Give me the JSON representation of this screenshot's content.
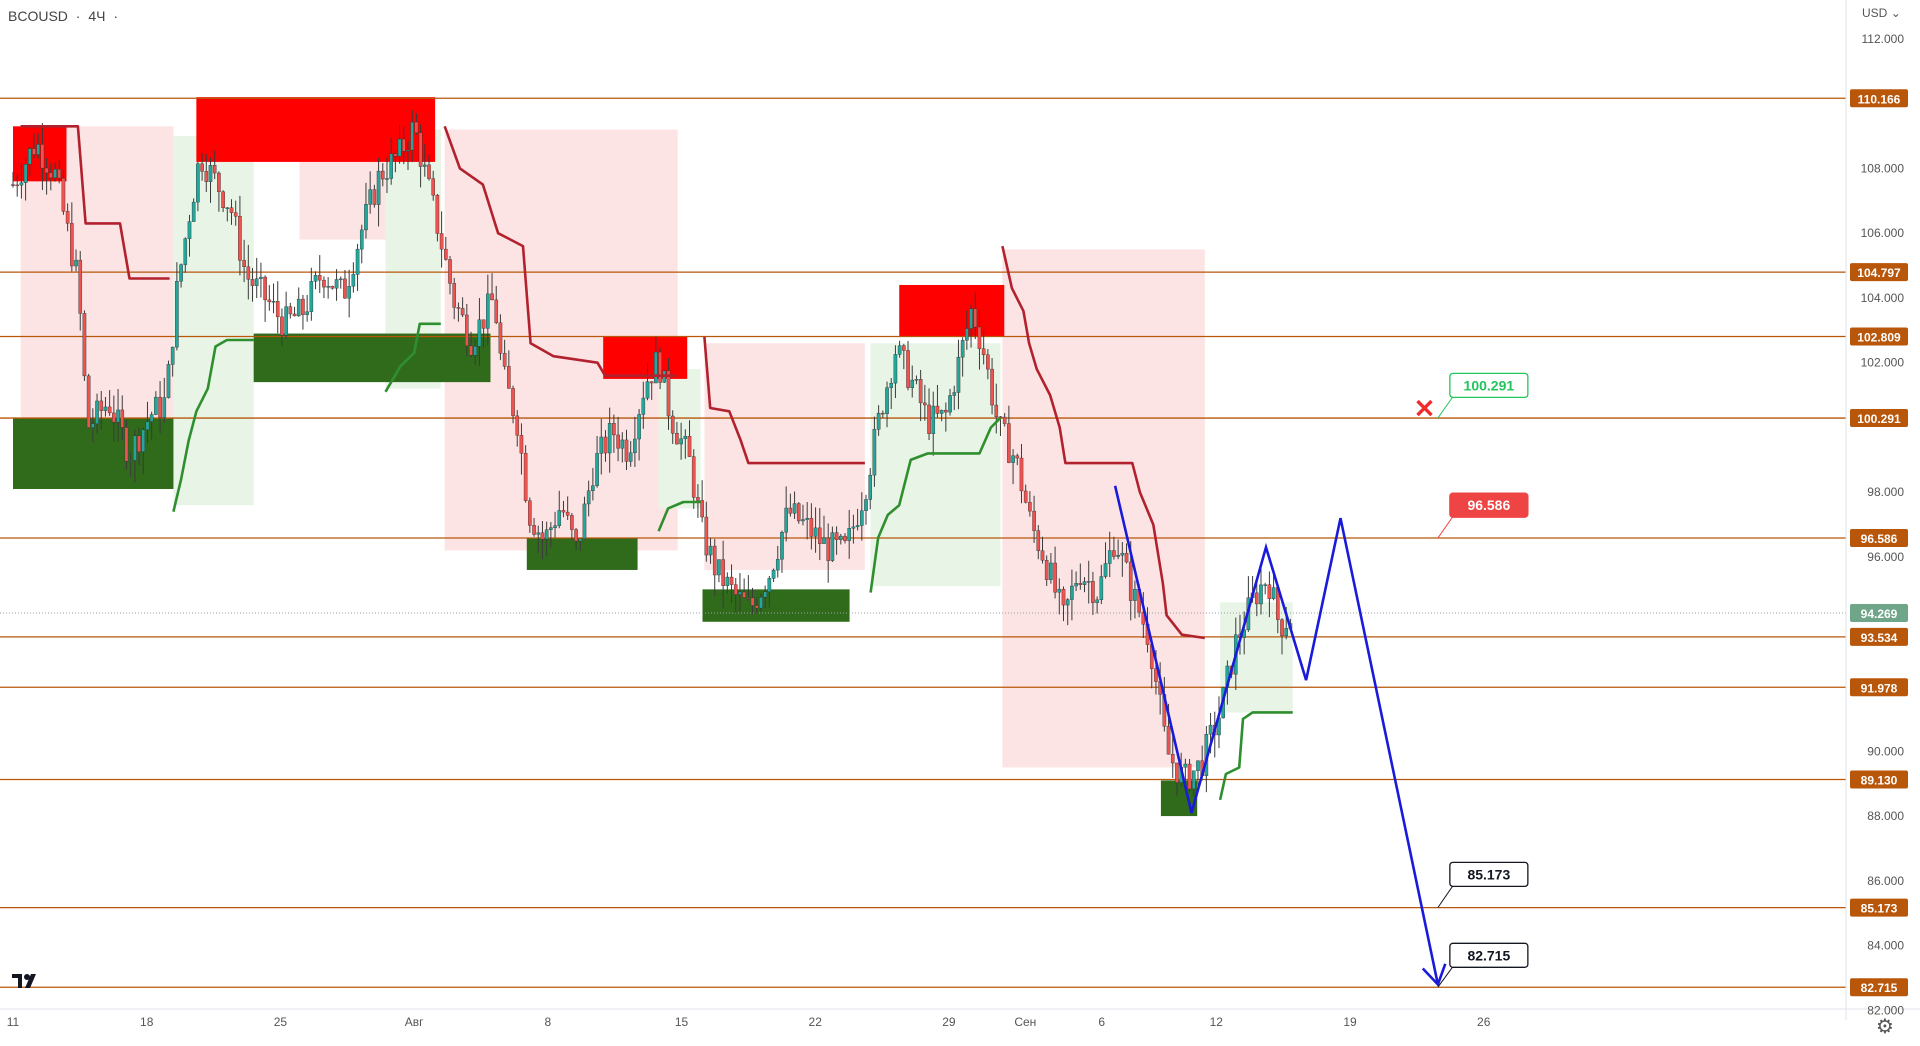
{
  "header": {
    "symbol": "BCOUSD",
    "timeframe": "4Ч"
  },
  "price_axis": {
    "currency": "USD"
  },
  "colors": {
    "level_line": "#b8560a",
    "level_label_bg": "#b8560a",
    "resistance_zone": "#ff0000",
    "support_zone": "#2f6b1b",
    "trail_down": "#b2222e",
    "trail_up": "#2f8f2f",
    "shade_down": "#fde4e4",
    "shade_up": "#e8f5e6",
    "projection": "#1a1adb",
    "current_price_bg": "#6fa589"
  },
  "icons": {
    "logo": "tradingview-logo-icon",
    "settings": "gear-icon",
    "stop": "x-mark-icon"
  },
  "chart_data": {
    "type": "candlestick",
    "symbol": "BCOUSD",
    "timeframe": "4Ч",
    "ylim": [
      80.9,
      113.2
    ],
    "y_ticks": [
      82,
      84,
      86,
      88,
      90,
      96,
      98,
      102,
      104,
      106,
      108,
      112
    ],
    "y_tick_labels": [
      "82.000",
      "84.000",
      "86.000",
      "88.000",
      "90.000",
      "96.000",
      "98.000",
      "102.000",
      "104.000",
      "106.000",
      "108.000",
      "112.000"
    ],
    "x_ticks": [
      {
        "label": "11",
        "d": 0
      },
      {
        "label": "18",
        "d": 7
      },
      {
        "label": "25",
        "d": 14
      },
      {
        "label": "Авг",
        "d": 21
      },
      {
        "label": "8",
        "d": 28
      },
      {
        "label": "15",
        "d": 35
      },
      {
        "label": "22",
        "d": 42
      },
      {
        "label": "29",
        "d": 49
      },
      {
        "label": "Сен",
        "d": 53
      },
      {
        "label": "6",
        "d": 57
      },
      {
        "label": "12",
        "d": 63
      },
      {
        "label": "19",
        "d": 70
      },
      {
        "label": "26",
        "d": 77
      }
    ],
    "levels": [
      {
        "value": 110.166,
        "label": "110.166"
      },
      {
        "value": 104.797,
        "label": "104.797"
      },
      {
        "value": 102.809,
        "label": "102.809"
      },
      {
        "value": 100.291,
        "label": "100.291"
      },
      {
        "value": 96.586,
        "label": "96.586"
      },
      {
        "value": 93.534,
        "label": "93.534"
      },
      {
        "value": 91.978,
        "label": "91.978"
      },
      {
        "value": 89.13,
        "label": "89.130"
      },
      {
        "value": 85.173,
        "label": "85.173"
      },
      {
        "value": 82.715,
        "label": "82.715"
      }
    ],
    "current_price": {
      "value": 94.269,
      "label": "94.269"
    },
    "resistance_zones": [
      {
        "d0": 0,
        "d1": 2.8,
        "y0": 107.6,
        "y1": 109.3
      },
      {
        "d0": 9.6,
        "d1": 22.1,
        "y0": 108.2,
        "y1": 110.2
      },
      {
        "d0": 30.9,
        "d1": 35.3,
        "y0": 101.5,
        "y1": 102.8
      },
      {
        "d0": 46.4,
        "d1": 51.9,
        "y0": 102.8,
        "y1": 104.4
      }
    ],
    "support_zones": [
      {
        "d0": 0,
        "d1": 8.4,
        "y0": 98.1,
        "y1": 100.3
      },
      {
        "d0": 12.6,
        "d1": 25,
        "y0": 101.4,
        "y1": 102.9
      },
      {
        "d0": 26.9,
        "d1": 32.7,
        "y0": 95.6,
        "y1": 96.6
      },
      {
        "d0": 36.1,
        "d1": 43.8,
        "y0": 94.0,
        "y1": 95.0
      },
      {
        "d0": 60.1,
        "d1": 62,
        "y0": 88.0,
        "y1": 89.1
      }
    ],
    "trail_down": [
      [
        [
          0.4,
          109.3
        ],
        [
          3.4,
          109.3
        ],
        [
          3.8,
          106.3
        ],
        [
          5.6,
          106.3
        ],
        [
          6.1,
          104.6
        ],
        [
          8.2,
          104.6
        ]
      ],
      [
        [
          22.6,
          109.3
        ],
        [
          23.4,
          108.0
        ],
        [
          24.6,
          107.5
        ],
        [
          25.4,
          106.0
        ],
        [
          26.7,
          105.6
        ],
        [
          27.1,
          102.6
        ],
        [
          28.3,
          102.2
        ],
        [
          30.6,
          102.0
        ],
        [
          31.0,
          101.6
        ],
        [
          34.8,
          101.6
        ]
      ],
      [
        [
          36.2,
          102.8
        ],
        [
          36.5,
          100.6
        ],
        [
          37.5,
          100.5
        ],
        [
          38.1,
          99.6
        ],
        [
          38.5,
          98.9
        ],
        [
          40.3,
          98.9
        ],
        [
          44.6,
          98.9
        ]
      ],
      [
        [
          51.8,
          105.6
        ],
        [
          52.3,
          104.3
        ],
        [
          52.9,
          103.6
        ],
        [
          53.2,
          102.6
        ],
        [
          53.6,
          101.8
        ],
        [
          54.3,
          101.0
        ],
        [
          54.8,
          100.0
        ],
        [
          55.1,
          98.9
        ],
        [
          58.6,
          98.9
        ],
        [
          59.0,
          98.0
        ],
        [
          59.7,
          97.0
        ],
        [
          60.2,
          95.2
        ],
        [
          60.4,
          94.2
        ],
        [
          61.2,
          93.6
        ],
        [
          62.4,
          93.5
        ]
      ]
    ],
    "trail_up": [
      [
        [
          8.4,
          97.4
        ],
        [
          8.8,
          98.4
        ],
        [
          9.2,
          99.6
        ],
        [
          9.6,
          100.5
        ],
        [
          10.2,
          101.2
        ],
        [
          10.6,
          102.5
        ],
        [
          11.2,
          102.7
        ],
        [
          12.6,
          102.7
        ]
      ],
      [
        [
          19.5,
          101.1
        ],
        [
          20.3,
          101.9
        ],
        [
          21.0,
          102.3
        ],
        [
          21.3,
          103.2
        ],
        [
          22.4,
          103.2
        ]
      ],
      [
        [
          33.8,
          96.8
        ],
        [
          34.3,
          97.5
        ],
        [
          35.1,
          97.7
        ],
        [
          36.0,
          97.7
        ]
      ],
      [
        [
          44.9,
          94.9
        ],
        [
          45.3,
          96.6
        ],
        [
          45.8,
          97.3
        ],
        [
          46.4,
          97.6
        ],
        [
          47.0,
          99.0
        ],
        [
          47.9,
          99.2
        ],
        [
          50.6,
          99.2
        ],
        [
          51.2,
          100.0
        ],
        [
          51.7,
          100.3
        ]
      ],
      [
        [
          63.2,
          88.5
        ],
        [
          63.5,
          89.3
        ],
        [
          64.2,
          89.5
        ],
        [
          64.4,
          91.0
        ],
        [
          64.9,
          91.2
        ],
        [
          67.0,
          91.2
        ]
      ]
    ],
    "shades_down": [
      {
        "d0": 0.4,
        "d1": 8.4,
        "top": 109.3,
        "bottom": 99.6
      },
      {
        "d0": 15.0,
        "d1": 22.4,
        "top": 109.2,
        "bottom": 105.8
      },
      {
        "d0": 22.6,
        "d1": 34.8,
        "top": 109.2,
        "bottom": 96.2
      },
      {
        "d0": 36.2,
        "d1": 44.6,
        "top": 102.6,
        "bottom": 95.6
      },
      {
        "d0": 51.8,
        "d1": 62.4,
        "top": 105.5,
        "bottom": 89.5
      }
    ],
    "shades_up": [
      {
        "d0": 8.4,
        "d1": 12.6,
        "top": 109.0,
        "bottom": 97.6
      },
      {
        "d0": 19.5,
        "d1": 22.4,
        "top": 109.2,
        "bottom": 101.2
      },
      {
        "d0": 33.8,
        "d1": 36.0,
        "top": 101.8,
        "bottom": 97.5
      },
      {
        "d0": 44.9,
        "d1": 51.7,
        "top": 102.6,
        "bottom": 95.1
      },
      {
        "d0": 63.2,
        "d1": 67.0,
        "top": 94.6,
        "bottom": 91.2
      }
    ],
    "projection": [
      {
        "d": 57.7,
        "v": 98.2
      },
      {
        "d": 61.7,
        "v": 88.1
      },
      {
        "d": 65.6,
        "v": 96.3
      },
      {
        "d": 67.7,
        "v": 92.2
      },
      {
        "d": 69.5,
        "v": 97.2
      },
      {
        "d": 74.6,
        "v": 82.8
      }
    ],
    "callouts": [
      {
        "label": "100.291",
        "value": 100.291,
        "d": 74.6,
        "value_box": 101.3,
        "style": "green"
      },
      {
        "label": "96.586",
        "value": 96.586,
        "d": 74.6,
        "value_box": 97.6,
        "style": "red"
      },
      {
        "label": "85.173",
        "value": 85.173,
        "d": 74.6,
        "value_box": 86.2,
        "style": "black"
      },
      {
        "label": "82.715",
        "value": 82.715,
        "d": 74.6,
        "value_box": 83.7,
        "style": "black"
      }
    ],
    "stop_marker": {
      "d": 73.9,
      "value": 100.6
    },
    "candle_path": [
      [
        0,
        107.5
      ],
      [
        1.2,
        108.8
      ],
      [
        2.2,
        107.8
      ],
      [
        2.8,
        106.2
      ],
      [
        3.4,
        104.5
      ],
      [
        3.9,
        100.0
      ],
      [
        5.0,
        100.8
      ],
      [
        6.1,
        99.2
      ],
      [
        7.2,
        100.4
      ],
      [
        8.0,
        100.8
      ],
      [
        8.6,
        104.3
      ],
      [
        9.2,
        106.5
      ],
      [
        9.8,
        108.4
      ],
      [
        10.5,
        107.7
      ],
      [
        11.4,
        106.8
      ],
      [
        12.2,
        104.7
      ],
      [
        13.2,
        104.0
      ],
      [
        14.2,
        103.2
      ],
      [
        15.2,
        103.6
      ],
      [
        16.2,
        104.8
      ],
      [
        17.3,
        104.1
      ],
      [
        18.2,
        106.0
      ],
      [
        19.2,
        107.8
      ],
      [
        20.2,
        108.4
      ],
      [
        21.0,
        109.3
      ],
      [
        21.5,
        108.0
      ],
      [
        22.2,
        106.3
      ],
      [
        23.1,
        103.9
      ],
      [
        24.0,
        102.7
      ],
      [
        25.2,
        104.0
      ],
      [
        25.6,
        101.7
      ],
      [
        26.4,
        100.2
      ],
      [
        27.0,
        97.4
      ],
      [
        27.8,
        96.5
      ],
      [
        28.7,
        97.6
      ],
      [
        29.5,
        96.2
      ],
      [
        30.4,
        98.8
      ],
      [
        31.4,
        99.9
      ],
      [
        32.2,
        99.3
      ],
      [
        33.1,
        101.4
      ],
      [
        33.8,
        102.1
      ],
      [
        34.4,
        100.4
      ],
      [
        35.4,
        99.0
      ],
      [
        36.1,
        96.7
      ],
      [
        36.8,
        95.6
      ],
      [
        37.8,
        94.8
      ],
      [
        38.6,
        94.4
      ],
      [
        39.6,
        95.5
      ],
      [
        40.6,
        97.4
      ],
      [
        41.6,
        96.9
      ],
      [
        42.6,
        96.3
      ],
      [
        43.6,
        96.2
      ],
      [
        44.6,
        98.1
      ],
      [
        45.5,
        100.7
      ],
      [
        46.2,
        102.4
      ],
      [
        47.0,
        101.5
      ],
      [
        47.9,
        100.2
      ],
      [
        48.8,
        100.3
      ],
      [
        49.6,
        102.2
      ],
      [
        50.2,
        103.7
      ],
      [
        50.8,
        102.4
      ],
      [
        51.6,
        100.0
      ],
      [
        52.5,
        99.0
      ],
      [
        53.3,
        97.0
      ],
      [
        54.0,
        96.0
      ],
      [
        55.0,
        94.1
      ],
      [
        55.8,
        95.6
      ],
      [
        56.8,
        94.9
      ],
      [
        57.7,
        96.6
      ],
      [
        58.6,
        94.9
      ],
      [
        59.5,
        93.5
      ],
      [
        60.4,
        90.0
      ],
      [
        61.3,
        89.1
      ],
      [
        62.2,
        89.6
      ],
      [
        63.2,
        91.2
      ],
      [
        64.0,
        93.3
      ],
      [
        65.0,
        94.8
      ],
      [
        65.7,
        95.4
      ],
      [
        66.3,
        93.9
      ],
      [
        67.0,
        94.2
      ]
    ]
  }
}
